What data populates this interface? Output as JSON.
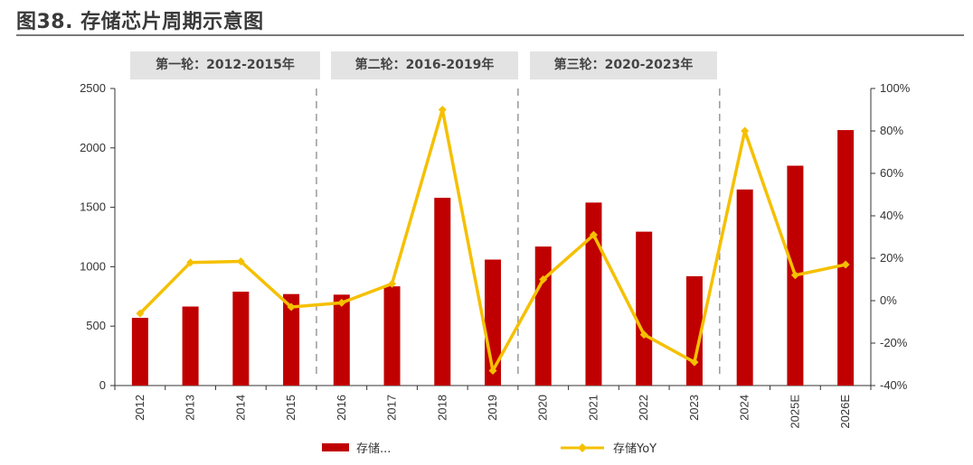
{
  "figure_title": "图38. 存储芯片周期示意图",
  "cycles": [
    {
      "label": "第一轮：2012-2015年"
    },
    {
      "label": "第二轮：2016-2019年"
    },
    {
      "label": "第三轮：2020-2023年"
    }
  ],
  "colors": {
    "bar": "#c00000",
    "line": "#f5c000",
    "cycle_box": "#e3e3e3",
    "divider": "#999999"
  },
  "chart_data": {
    "type": "bar",
    "categories": [
      "2012",
      "2013",
      "2014",
      "2015",
      "2016",
      "2017",
      "2018",
      "2019",
      "2020",
      "2021",
      "2022",
      "2023",
      "2024",
      "2025E",
      "2026E"
    ],
    "series": [
      {
        "name": "存储...",
        "kind": "bar",
        "axis": "left",
        "values": [
          570,
          665,
          790,
          770,
          765,
          835,
          1580,
          1060,
          1170,
          1540,
          1295,
          920,
          1650,
          1850,
          2150
        ]
      },
      {
        "name": "存储YoY",
        "kind": "line",
        "axis": "right",
        "values": [
          -6,
          18,
          18.5,
          -3,
          -1,
          8,
          90,
          -33,
          10,
          31,
          -16,
          -29,
          80,
          12,
          17
        ]
      }
    ],
    "ylim": [
      0,
      2500
    ],
    "yticks": [
      0,
      500,
      1000,
      1500,
      2000,
      2500
    ],
    "y2lim": [
      -40,
      100
    ],
    "y2ticks": [
      "-40%",
      "-20%",
      "0%",
      "20%",
      "40%",
      "60%",
      "80%",
      "100%"
    ],
    "y2tick_values": [
      -40,
      -20,
      0,
      20,
      40,
      60,
      80,
      100
    ],
    "cycle_dividers_after": [
      "2015",
      "2019",
      "2023"
    ],
    "legend": {
      "position": "bottom"
    }
  }
}
